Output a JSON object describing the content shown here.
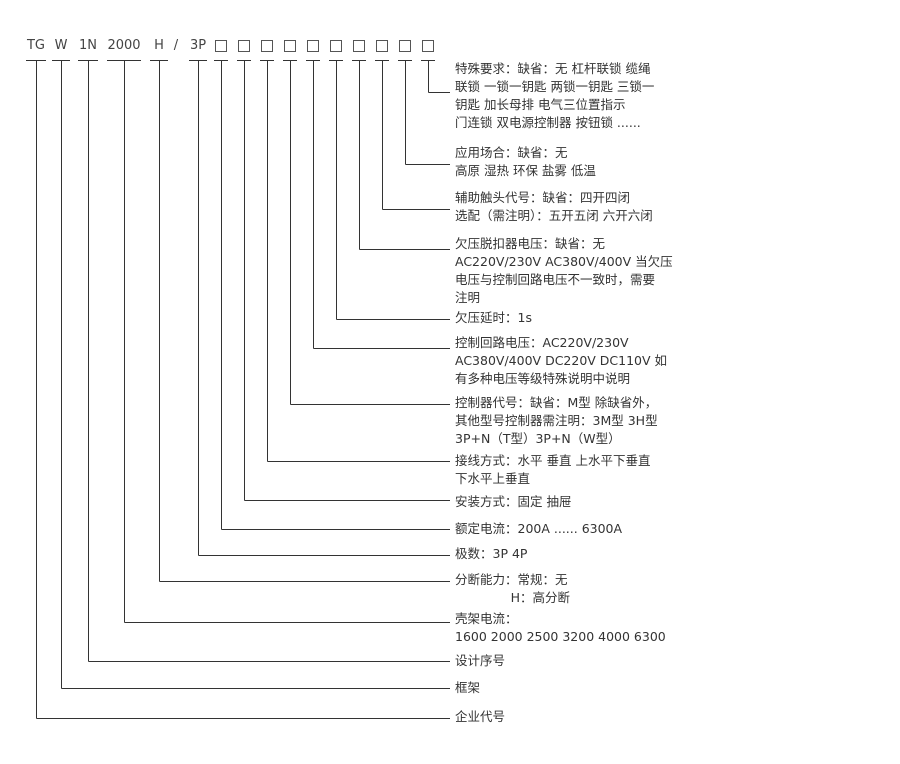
{
  "codes": [
    {
      "label": "TG",
      "name": "company-code"
    },
    {
      "label": "W",
      "name": "frame-code"
    },
    {
      "label": "1N",
      "name": "design-serial-code"
    },
    {
      "label": "2000",
      "name": "frame-current-code"
    },
    {
      "label": "H",
      "name": "breaking-capacity-code"
    },
    {
      "label": "/",
      "name": "separator"
    },
    {
      "label": "3P",
      "name": "poles-code"
    },
    {
      "label": "□",
      "name": "rated-current-box"
    },
    {
      "label": "□",
      "name": "installation-box"
    },
    {
      "label": "□",
      "name": "wiring-box"
    },
    {
      "label": "□",
      "name": "controller-box"
    },
    {
      "label": "□",
      "name": "control-voltage-box"
    },
    {
      "label": "□",
      "name": "undervoltage-delay-box"
    },
    {
      "label": "□",
      "name": "undervoltage-release-box"
    },
    {
      "label": "□",
      "name": "auxiliary-contact-box"
    },
    {
      "label": "□",
      "name": "application-box"
    },
    {
      "label": "□",
      "name": "special-requirement-box"
    }
  ],
  "descriptions": [
    {
      "name": "special-requirement",
      "lines": [
        "特殊要求：缺省：无 杠杆联锁 缆绳",
        "联锁 一锁一钥匙 两锁一钥匙 三锁一",
        "钥匙 加长母排 电气三位置指示",
        "门连锁 双电源控制器 按钮锁 ......"
      ]
    },
    {
      "name": "application",
      "lines": [
        "应用场合：缺省：无",
        "高原 湿热 环保 盐雾 低温"
      ]
    },
    {
      "name": "auxiliary-contact",
      "lines": [
        "辅助触头代号：缺省：四开四闭",
        "选配（需注明）：五开五闭 六开六闭"
      ]
    },
    {
      "name": "undervoltage-release",
      "lines": [
        "欠压脱扣器电压：缺省：无",
        "AC220V/230V AC380V/400V 当欠压",
        "电压与控制回路电压不一致时，需要",
        "注明"
      ]
    },
    {
      "name": "undervoltage-delay",
      "lines": [
        "欠压延时：1s"
      ]
    },
    {
      "name": "control-voltage",
      "lines": [
        "控制回路电压：AC220V/230V",
        "AC380V/400V DC220V DC110V 如",
        "有多种电压等级特殊说明中说明"
      ]
    },
    {
      "name": "controller",
      "lines": [
        "控制器代号：缺省：M型 除缺省外，",
        "其他型号控制器需注明：3M型 3H型",
        "3P+N（T型）3P+N（W型）"
      ]
    },
    {
      "name": "wiring",
      "lines": [
        "接线方式：水平 垂直 上水平下垂直",
        "下水平上垂直"
      ]
    },
    {
      "name": "installation",
      "lines": [
        "安装方式：固定 抽屉"
      ]
    },
    {
      "name": "rated-current",
      "lines": [
        "额定电流：200A ...... 6300A"
      ]
    },
    {
      "name": "poles",
      "lines": [
        "极数：3P 4P"
      ]
    },
    {
      "name": "breaking-capacity",
      "lines": [
        "分断能力：常规：无",
        "              H：高分断"
      ]
    },
    {
      "name": "frame-current",
      "lines": [
        "壳架电流：",
        "1600 2000 2500 3200 4000 6300"
      ]
    },
    {
      "name": "design-serial",
      "lines": [
        "设计序号"
      ]
    },
    {
      "name": "frame",
      "lines": [
        "框架"
      ]
    },
    {
      "name": "company-code",
      "lines": [
        "企业代号"
      ]
    }
  ],
  "line_color": "#333333"
}
